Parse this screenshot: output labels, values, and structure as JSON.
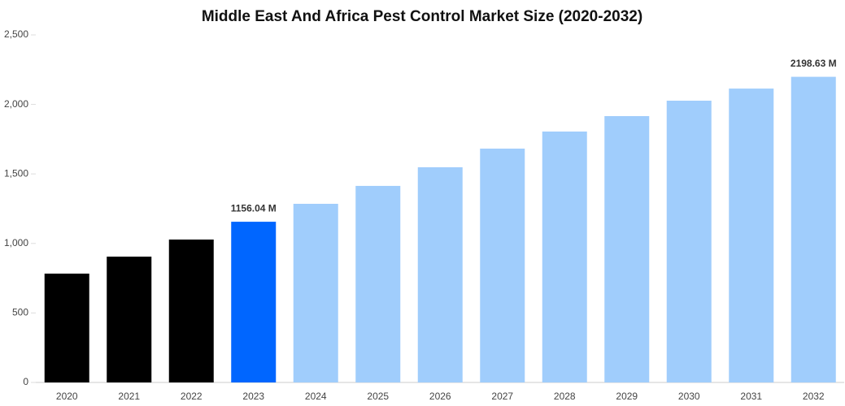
{
  "chart_data": {
    "type": "bar",
    "title": "Middle East And Africa Pest Control Market Size (2020-2032)",
    "categories": [
      "2020",
      "2021",
      "2022",
      "2023",
      "2024",
      "2025",
      "2026",
      "2027",
      "2028",
      "2029",
      "2030",
      "2031",
      "2032"
    ],
    "values": [
      783,
      905,
      1028,
      1156.04,
      1285,
      1414,
      1548,
      1682,
      1805,
      1916,
      2027,
      2114,
      2198.63
    ],
    "value_labels": [
      null,
      null,
      null,
      "1156.04 M",
      null,
      null,
      null,
      null,
      null,
      null,
      null,
      null,
      "2198.63 M"
    ],
    "colors": [
      "#000000",
      "#000000",
      "#000000",
      "#0066ff",
      "#a0cdfc",
      "#a0cdfc",
      "#a0cdfc",
      "#a0cdfc",
      "#a0cdfc",
      "#a0cdfc",
      "#a0cdfc",
      "#a0cdfc",
      "#a0cdfc"
    ],
    "ylim": [
      0,
      2500
    ],
    "yticks": [
      0,
      500,
      {
        "value": 1000,
        "label": "1,000"
      },
      {
        "value": 1500,
        "label": "1,500"
      },
      {
        "value": 2000,
        "label": "2,000"
      },
      {
        "value": 2500,
        "label": "2,500"
      }
    ],
    "grid": false
  }
}
